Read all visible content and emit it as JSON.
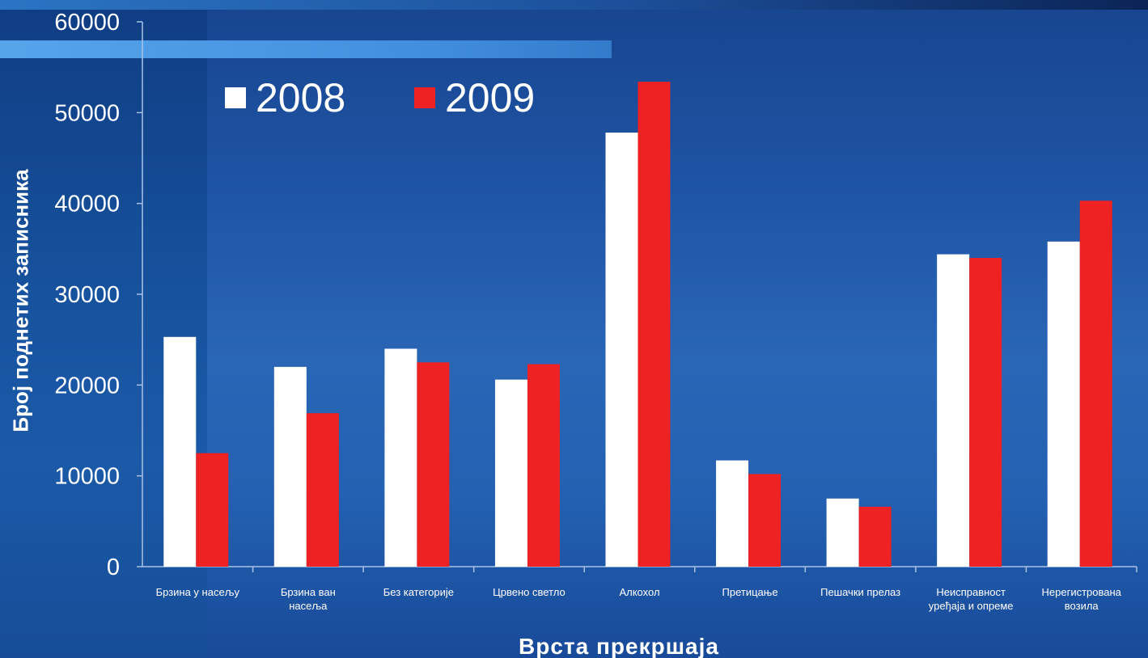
{
  "chart_data": {
    "type": "bar",
    "title": "",
    "xlabel": "Врста прекршаја",
    "ylabel": "Број поднетих записника",
    "ylim": [
      0,
      60000
    ],
    "yticks": [
      "0",
      "10000",
      "20000",
      "30000",
      "40000",
      "50000",
      "60000"
    ],
    "yticks_values": [
      0,
      10000,
      20000,
      30000,
      40000,
      50000,
      60000
    ],
    "categories": [
      [
        "Брзина у насељу"
      ],
      [
        "Брзина ван",
        "насеља"
      ],
      [
        "Без категорије"
      ],
      [
        "Црвено светло"
      ],
      [
        "Алкохол"
      ],
      [
        "Претицање"
      ],
      [
        "Пешачки прелаз"
      ],
      [
        "Неисправност",
        "уређаја и опреме"
      ],
      [
        "Нерегистрована",
        "возила"
      ]
    ],
    "series": [
      {
        "name": "2008",
        "color": "#ffffff",
        "values": [
          25300,
          22000,
          24000,
          20600,
          47800,
          11700,
          7500,
          34400,
          35800
        ]
      },
      {
        "name": "2009",
        "color": "#ee2222",
        "values": [
          12500,
          16900,
          22500,
          22300,
          53400,
          10200,
          6600,
          34000,
          40300
        ]
      }
    ],
    "legend": {
      "position": "top-left"
    },
    "grid": false
  }
}
